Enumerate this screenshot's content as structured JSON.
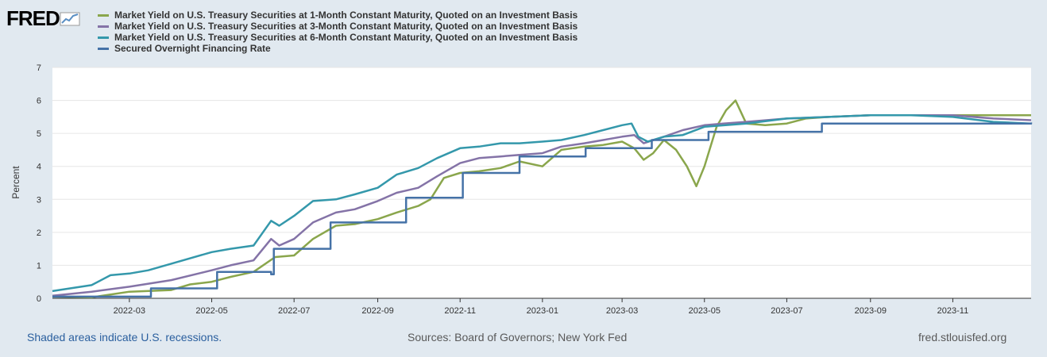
{
  "logo": {
    "text": "FRED"
  },
  "footer": {
    "recessions": "Shaded areas indicate U.S. recessions.",
    "sources": "Sources: Board of Governors; New York Fed",
    "site": "fred.stlouisfed.org"
  },
  "chart_data": {
    "type": "line",
    "ylabel": "Percent",
    "ylim": [
      0,
      7
    ],
    "yticks": [
      "0",
      "1",
      "2",
      "3",
      "4",
      "5",
      "6",
      "7"
    ],
    "xticks": [
      "2022-03",
      "2022-05",
      "2022-07",
      "2022-09",
      "2022-11",
      "2023-01",
      "2023-03",
      "2023-05",
      "2023-07",
      "2023-09",
      "2023-11"
    ],
    "xrange": [
      "2022-01-03",
      "2023-12-29"
    ],
    "series": [
      {
        "name": "Market Yield on U.S. Treasury Securities at 1-Month Constant Maturity, Quoted on an Investment Basis",
        "color": "#8aa64c",
        "points": [
          [
            "2022-01-03",
            0.05
          ],
          [
            "2022-02-01",
            0.03
          ],
          [
            "2022-03-01",
            0.2
          ],
          [
            "2022-04-01",
            0.25
          ],
          [
            "2022-04-15",
            0.42
          ],
          [
            "2022-05-01",
            0.5
          ],
          [
            "2022-05-15",
            0.65
          ],
          [
            "2022-06-01",
            0.8
          ],
          [
            "2022-06-17",
            1.25
          ],
          [
            "2022-07-01",
            1.3
          ],
          [
            "2022-07-15",
            1.8
          ],
          [
            "2022-08-01",
            2.2
          ],
          [
            "2022-08-15",
            2.25
          ],
          [
            "2022-09-01",
            2.4
          ],
          [
            "2022-09-15",
            2.6
          ],
          [
            "2022-10-01",
            2.8
          ],
          [
            "2022-10-10",
            3.0
          ],
          [
            "2022-10-20",
            3.65
          ],
          [
            "2022-11-01",
            3.8
          ],
          [
            "2022-11-15",
            3.85
          ],
          [
            "2022-12-01",
            3.95
          ],
          [
            "2022-12-15",
            4.15
          ],
          [
            "2023-01-01",
            4.0
          ],
          [
            "2023-01-15",
            4.5
          ],
          [
            "2023-02-01",
            4.6
          ],
          [
            "2023-02-15",
            4.65
          ],
          [
            "2023-03-01",
            4.75
          ],
          [
            "2023-03-10",
            4.55
          ],
          [
            "2023-03-17",
            4.2
          ],
          [
            "2023-03-24",
            4.4
          ],
          [
            "2023-04-01",
            4.8
          ],
          [
            "2023-04-10",
            4.5
          ],
          [
            "2023-04-18",
            4.0
          ],
          [
            "2023-04-25",
            3.4
          ],
          [
            "2023-05-01",
            4.0
          ],
          [
            "2023-05-10",
            5.2
          ],
          [
            "2023-05-17",
            5.7
          ],
          [
            "2023-05-24",
            6.0
          ],
          [
            "2023-06-01",
            5.3
          ],
          [
            "2023-06-15",
            5.25
          ],
          [
            "2023-07-01",
            5.3
          ],
          [
            "2023-07-15",
            5.45
          ],
          [
            "2023-08-01",
            5.5
          ],
          [
            "2023-09-01",
            5.55
          ],
          [
            "2023-10-01",
            5.55
          ],
          [
            "2023-11-01",
            5.55
          ],
          [
            "2023-12-01",
            5.55
          ],
          [
            "2023-12-29",
            5.55
          ]
        ]
      },
      {
        "name": "Market Yield on U.S. Treasury Securities at 3-Month Constant Maturity, Quoted on an Investment Basis",
        "color": "#8473a7",
        "points": [
          [
            "2022-01-03",
            0.08
          ],
          [
            "2022-02-01",
            0.2
          ],
          [
            "2022-03-01",
            0.35
          ],
          [
            "2022-04-01",
            0.55
          ],
          [
            "2022-05-01",
            0.85
          ],
          [
            "2022-05-15",
            1.0
          ],
          [
            "2022-06-01",
            1.15
          ],
          [
            "2022-06-14",
            1.8
          ],
          [
            "2022-06-20",
            1.6
          ],
          [
            "2022-07-01",
            1.8
          ],
          [
            "2022-07-15",
            2.3
          ],
          [
            "2022-08-01",
            2.6
          ],
          [
            "2022-08-15",
            2.7
          ],
          [
            "2022-09-01",
            2.95
          ],
          [
            "2022-09-15",
            3.2
          ],
          [
            "2022-10-01",
            3.35
          ],
          [
            "2022-10-15",
            3.7
          ],
          [
            "2022-11-01",
            4.1
          ],
          [
            "2022-11-15",
            4.25
          ],
          [
            "2022-12-01",
            4.3
          ],
          [
            "2022-12-15",
            4.35
          ],
          [
            "2023-01-01",
            4.4
          ],
          [
            "2023-01-15",
            4.6
          ],
          [
            "2023-02-01",
            4.7
          ],
          [
            "2023-02-15",
            4.8
          ],
          [
            "2023-03-01",
            4.9
          ],
          [
            "2023-03-10",
            4.95
          ],
          [
            "2023-03-17",
            4.7
          ],
          [
            "2023-04-01",
            4.9
          ],
          [
            "2023-04-15",
            5.1
          ],
          [
            "2023-05-01",
            5.25
          ],
          [
            "2023-05-15",
            5.3
          ],
          [
            "2023-06-01",
            5.35
          ],
          [
            "2023-07-01",
            5.45
          ],
          [
            "2023-08-01",
            5.5
          ],
          [
            "2023-09-01",
            5.55
          ],
          [
            "2023-10-01",
            5.55
          ],
          [
            "2023-11-01",
            5.55
          ],
          [
            "2023-12-01",
            5.45
          ],
          [
            "2023-12-29",
            5.4
          ]
        ]
      },
      {
        "name": "Market Yield on U.S. Treasury Securities at 6-Month Constant Maturity, Quoted on an Investment Basis",
        "color": "#3498ab",
        "points": [
          [
            "2022-01-03",
            0.22
          ],
          [
            "2022-02-01",
            0.4
          ],
          [
            "2022-02-15",
            0.7
          ],
          [
            "2022-03-01",
            0.75
          ],
          [
            "2022-03-15",
            0.85
          ],
          [
            "2022-04-01",
            1.05
          ],
          [
            "2022-05-01",
            1.4
          ],
          [
            "2022-05-15",
            1.5
          ],
          [
            "2022-06-01",
            1.6
          ],
          [
            "2022-06-14",
            2.35
          ],
          [
            "2022-06-20",
            2.2
          ],
          [
            "2022-07-01",
            2.5
          ],
          [
            "2022-07-15",
            2.95
          ],
          [
            "2022-08-01",
            3.0
          ],
          [
            "2022-08-15",
            3.15
          ],
          [
            "2022-09-01",
            3.35
          ],
          [
            "2022-09-15",
            3.75
          ],
          [
            "2022-10-01",
            3.95
          ],
          [
            "2022-10-15",
            4.25
          ],
          [
            "2022-11-01",
            4.55
          ],
          [
            "2022-11-15",
            4.6
          ],
          [
            "2022-12-01",
            4.7
          ],
          [
            "2022-12-15",
            4.7
          ],
          [
            "2023-01-01",
            4.75
          ],
          [
            "2023-01-15",
            4.8
          ],
          [
            "2023-02-01",
            4.95
          ],
          [
            "2023-02-15",
            5.1
          ],
          [
            "2023-03-01",
            5.25
          ],
          [
            "2023-03-08",
            5.3
          ],
          [
            "2023-03-13",
            4.9
          ],
          [
            "2023-03-20",
            4.75
          ],
          [
            "2023-04-01",
            4.9
          ],
          [
            "2023-04-15",
            4.95
          ],
          [
            "2023-05-01",
            5.2
          ],
          [
            "2023-06-01",
            5.3
          ],
          [
            "2023-07-01",
            5.45
          ],
          [
            "2023-08-01",
            5.5
          ],
          [
            "2023-09-01",
            5.55
          ],
          [
            "2023-10-01",
            5.55
          ],
          [
            "2023-11-01",
            5.5
          ],
          [
            "2023-12-01",
            5.35
          ],
          [
            "2023-12-29",
            5.3
          ]
        ]
      },
      {
        "name": "Secured Overnight Financing Rate",
        "color": "#4572a7",
        "step": true,
        "points": [
          [
            "2022-01-03",
            0.05
          ],
          [
            "2022-03-17",
            0.3
          ],
          [
            "2022-05-05",
            0.8
          ],
          [
            "2022-06-14",
            0.73
          ],
          [
            "2022-06-16",
            1.5
          ],
          [
            "2022-07-28",
            2.3
          ],
          [
            "2022-09-22",
            3.05
          ],
          [
            "2022-11-03",
            3.8
          ],
          [
            "2022-12-15",
            4.3
          ],
          [
            "2023-02-02",
            4.55
          ],
          [
            "2023-03-23",
            4.8
          ],
          [
            "2023-05-04",
            5.05
          ],
          [
            "2023-07-27",
            5.3
          ],
          [
            "2023-12-29",
            5.33
          ]
        ]
      }
    ]
  }
}
